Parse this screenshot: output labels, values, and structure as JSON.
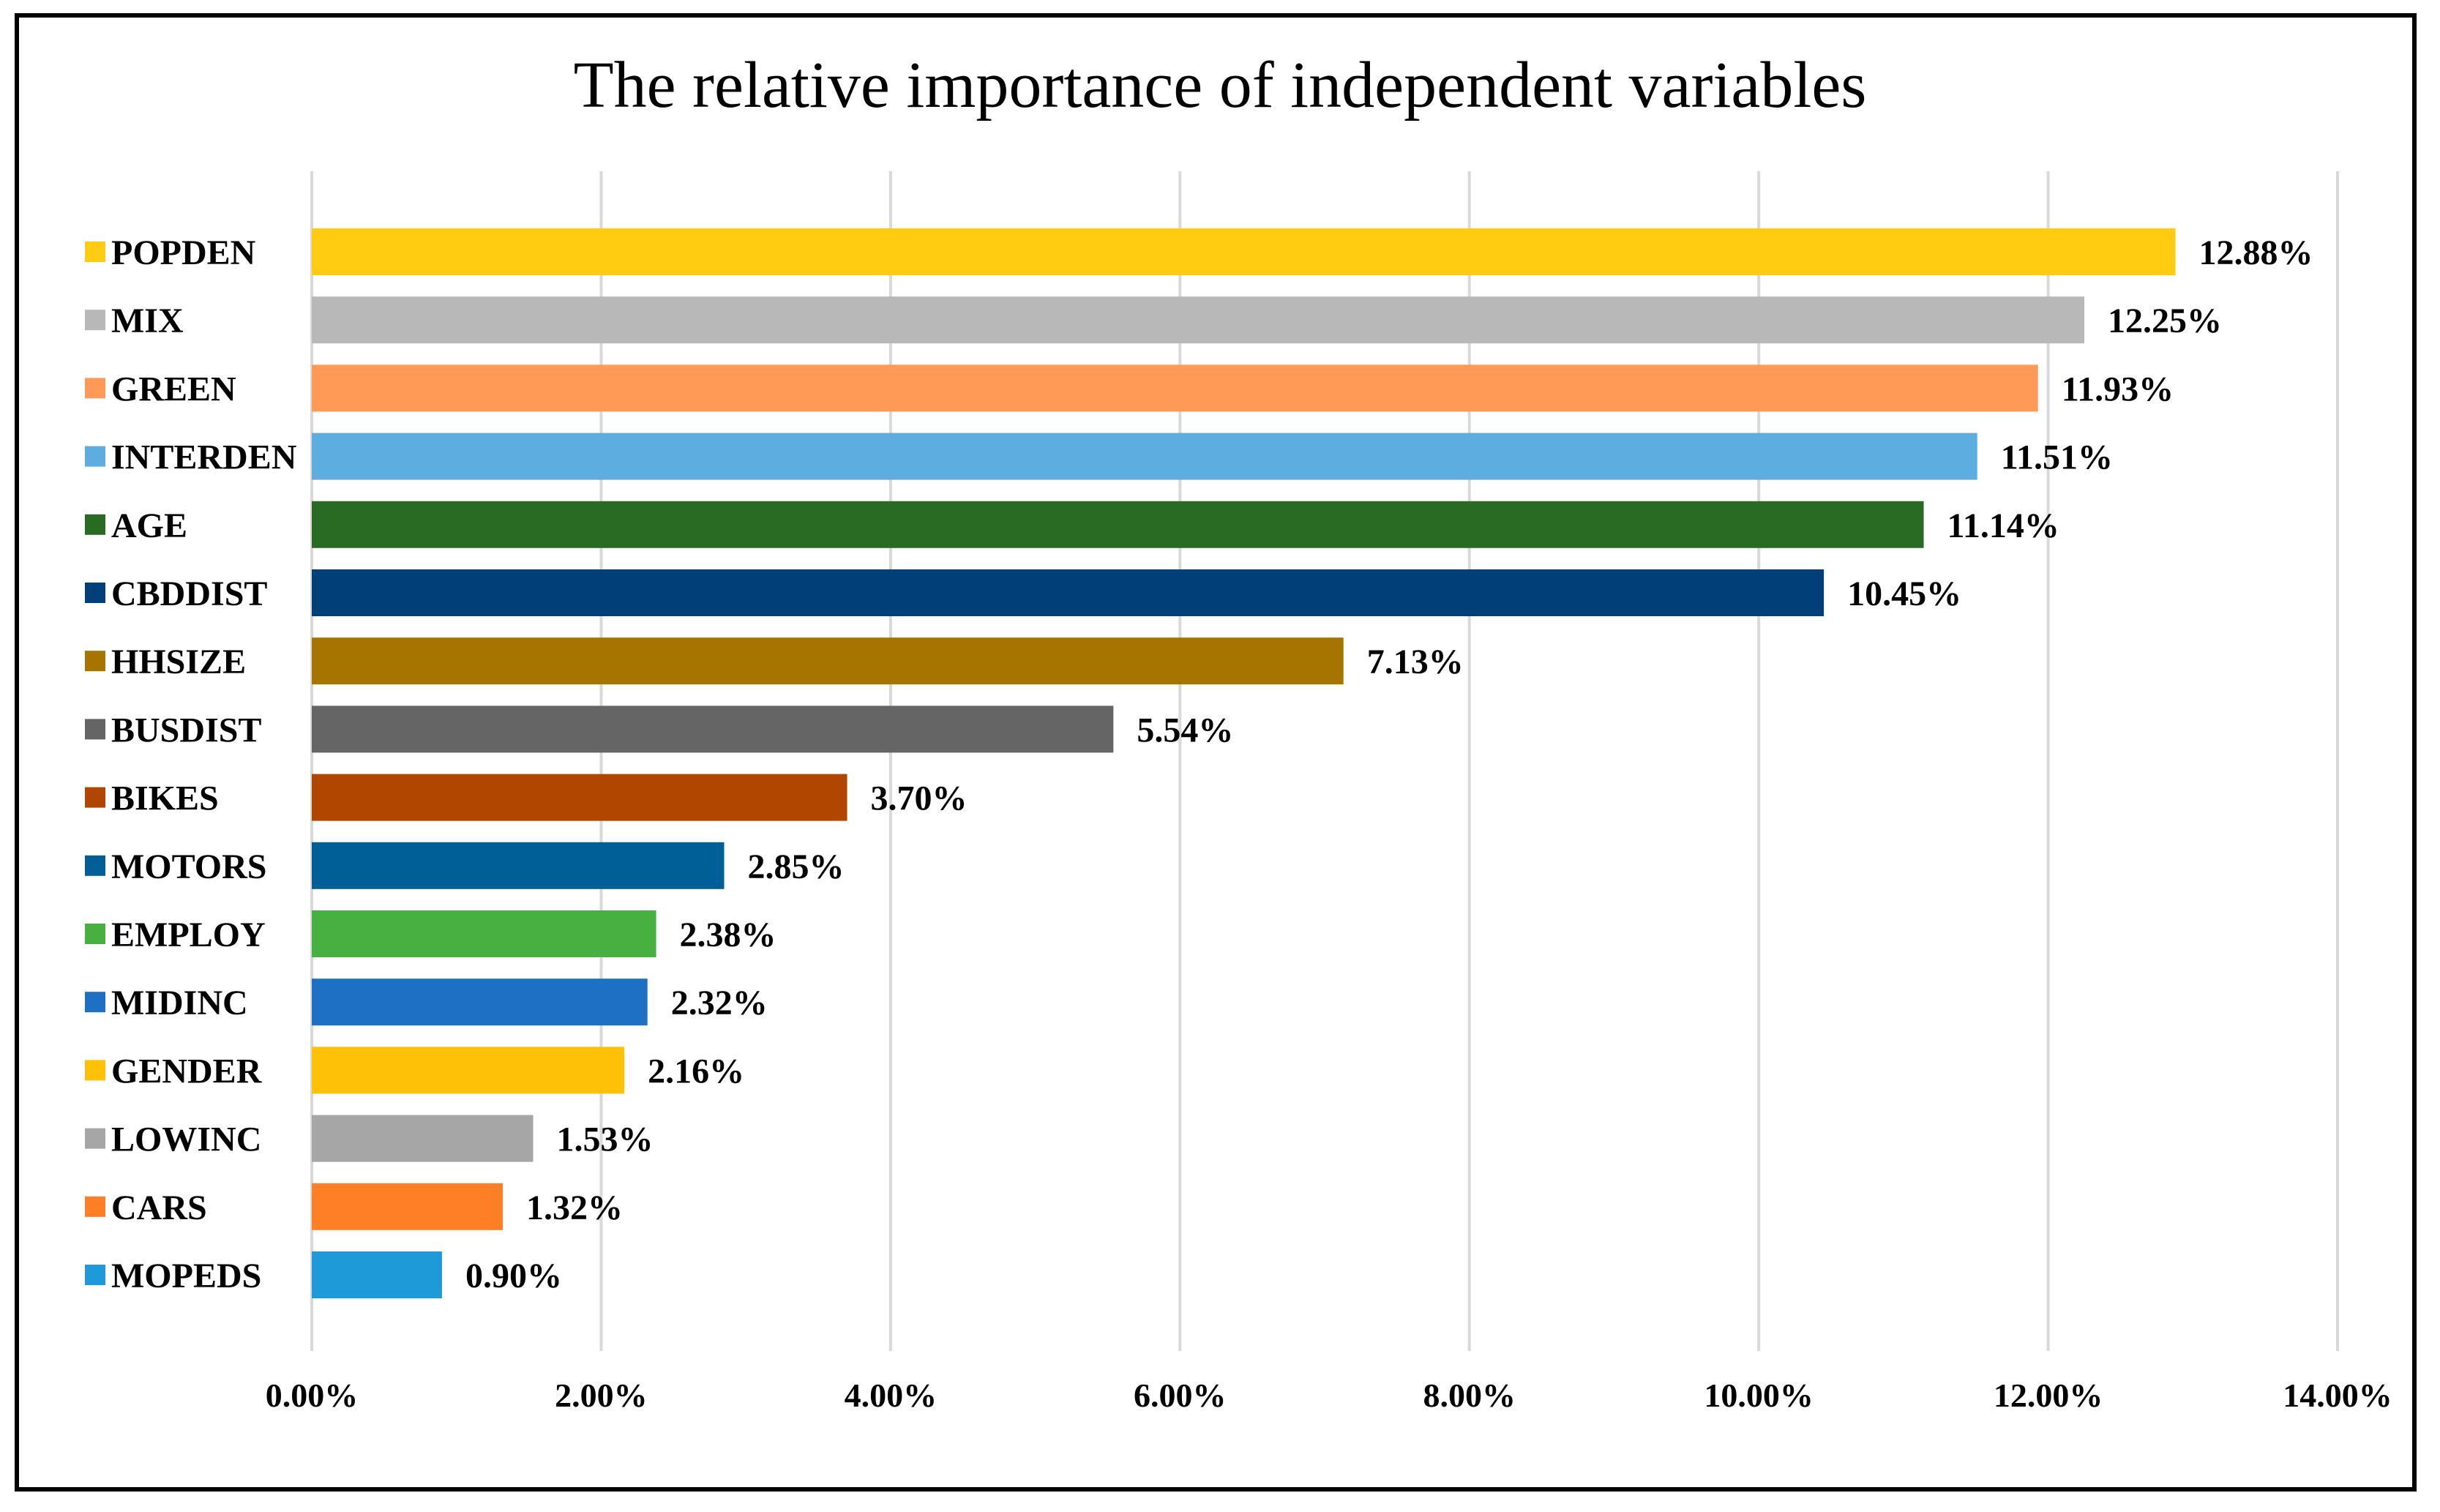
{
  "chart_data": {
    "type": "bar",
    "orientation": "horizontal",
    "title": "The relative importance of independent variables",
    "categories": [
      "POPDEN",
      "MIX",
      "GREEN",
      "INTERDEN",
      "AGE",
      "CBDDIST",
      "HHSIZE",
      "BUSDIST",
      "BIKES",
      "MOTORS",
      "EMPLOY",
      "MIDINC",
      "GENDER",
      "LOWINC",
      "CARS",
      "MOPEDS"
    ],
    "values": [
      12.88,
      12.25,
      11.93,
      11.51,
      11.14,
      10.45,
      7.13,
      5.54,
      3.7,
      2.85,
      2.38,
      2.32,
      2.16,
      1.53,
      1.32,
      0.9
    ],
    "value_labels": [
      "12.88%",
      "12.25%",
      "11.93%",
      "11.51%",
      "11.14%",
      "10.45%",
      "7.13%",
      "5.54%",
      "3.70%",
      "2.85%",
      "2.38%",
      "2.32%",
      "2.16%",
      "1.53%",
      "1.32%",
      "0.90%"
    ],
    "colors": [
      "#FFCC11",
      "#B8B8B8",
      "#FF9955",
      "#5DADE0",
      "#2A6B24",
      "#003F78",
      "#A67500",
      "#656565",
      "#B14600",
      "#005F96",
      "#47B040",
      "#1E70C4",
      "#FFC107",
      "#A6A6A6",
      "#FF7F27",
      "#1F9AD8"
    ],
    "xlim": [
      0,
      14
    ],
    "xticks": [
      0,
      2,
      4,
      6,
      8,
      10,
      12,
      14
    ],
    "xtick_labels": [
      "0.00%",
      "2.00%",
      "4.00%",
      "6.00%",
      "8.00%",
      "10.00%",
      "12.00%",
      "14.00%"
    ],
    "xlabel": "",
    "ylabel": "",
    "grid": "vertical",
    "legend": "left-of-bars"
  }
}
